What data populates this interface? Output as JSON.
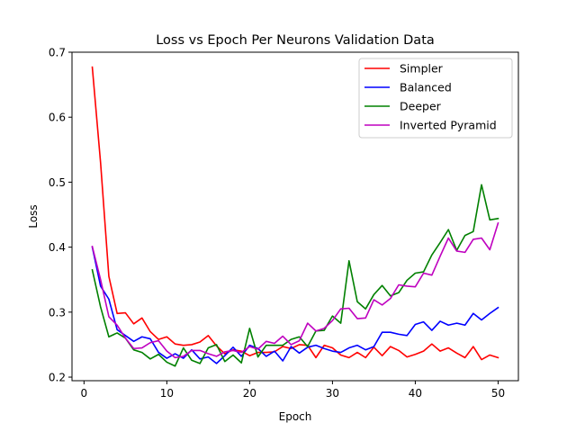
{
  "chart_data": {
    "type": "line",
    "title": "Loss vs Epoch Per Neurons Validation Data",
    "xlabel": "Epoch",
    "ylabel": "Loss",
    "xlim": [
      -1.45,
      52.45
    ],
    "ylim": [
      0.1945,
      0.7
    ],
    "xticks": [
      0,
      10,
      20,
      30,
      40,
      50
    ],
    "yticks": [
      0.2,
      0.3,
      0.4,
      0.5,
      0.6,
      0.7
    ],
    "grid": false,
    "legend_position": "top-right",
    "x": [
      1,
      2,
      3,
      4,
      5,
      6,
      7,
      8,
      9,
      10,
      11,
      12,
      13,
      14,
      15,
      16,
      17,
      18,
      19,
      20,
      21,
      22,
      23,
      24,
      25,
      26,
      27,
      28,
      29,
      30,
      31,
      32,
      33,
      34,
      35,
      36,
      37,
      38,
      39,
      40,
      41,
      42,
      43,
      44,
      45,
      46,
      47,
      48,
      49,
      50
    ],
    "series": [
      {
        "name": "Simpler",
        "color": "#ff0000",
        "values": [
          0.677,
          0.53,
          0.355,
          0.298,
          0.299,
          0.282,
          0.291,
          0.27,
          0.258,
          0.262,
          0.251,
          0.249,
          0.25,
          0.254,
          0.264,
          0.248,
          0.236,
          0.242,
          0.24,
          0.233,
          0.238,
          0.238,
          0.239,
          0.247,
          0.244,
          0.25,
          0.249,
          0.23,
          0.249,
          0.245,
          0.234,
          0.23,
          0.238,
          0.23,
          0.246,
          0.233,
          0.247,
          0.241,
          0.231,
          0.235,
          0.24,
          0.251,
          0.24,
          0.245,
          0.237,
          0.23,
          0.247,
          0.227,
          0.234,
          0.23
        ]
      },
      {
        "name": "Balanced",
        "color": "#0000ff",
        "values": [
          0.4,
          0.34,
          0.32,
          0.273,
          0.264,
          0.255,
          0.262,
          0.259,
          0.238,
          0.229,
          0.236,
          0.229,
          0.242,
          0.228,
          0.231,
          0.221,
          0.233,
          0.246,
          0.232,
          0.249,
          0.244,
          0.232,
          0.24,
          0.225,
          0.247,
          0.237,
          0.246,
          0.249,
          0.244,
          0.24,
          0.238,
          0.245,
          0.249,
          0.242,
          0.247,
          0.269,
          0.269,
          0.266,
          0.264,
          0.281,
          0.285,
          0.272,
          0.286,
          0.28,
          0.283,
          0.28,
          0.298,
          0.288,
          0.298,
          0.307
        ]
      },
      {
        "name": "Deeper",
        "color": "#008000",
        "values": [
          0.365,
          0.308,
          0.262,
          0.268,
          0.26,
          0.242,
          0.238,
          0.228,
          0.235,
          0.223,
          0.217,
          0.245,
          0.226,
          0.221,
          0.245,
          0.25,
          0.224,
          0.234,
          0.222,
          0.275,
          0.231,
          0.249,
          0.249,
          0.249,
          0.258,
          0.262,
          0.247,
          0.271,
          0.272,
          0.294,
          0.283,
          0.379,
          0.316,
          0.305,
          0.327,
          0.341,
          0.325,
          0.33,
          0.349,
          0.36,
          0.362,
          0.388,
          0.407,
          0.427,
          0.395,
          0.418,
          0.424,
          0.496,
          0.442,
          0.444
        ]
      },
      {
        "name": "Inverted Pyramid",
        "color": "#bf00bf",
        "values": [
          0.401,
          0.35,
          0.293,
          0.28,
          0.26,
          0.244,
          0.245,
          0.253,
          0.256,
          0.24,
          0.23,
          0.232,
          0.241,
          0.241,
          0.236,
          0.232,
          0.239,
          0.241,
          0.238,
          0.247,
          0.243,
          0.255,
          0.252,
          0.263,
          0.25,
          0.256,
          0.283,
          0.271,
          0.275,
          0.287,
          0.305,
          0.306,
          0.29,
          0.291,
          0.319,
          0.311,
          0.321,
          0.342,
          0.34,
          0.339,
          0.36,
          0.357,
          0.386,
          0.414,
          0.394,
          0.392,
          0.412,
          0.414,
          0.396,
          0.437
        ]
      }
    ]
  }
}
